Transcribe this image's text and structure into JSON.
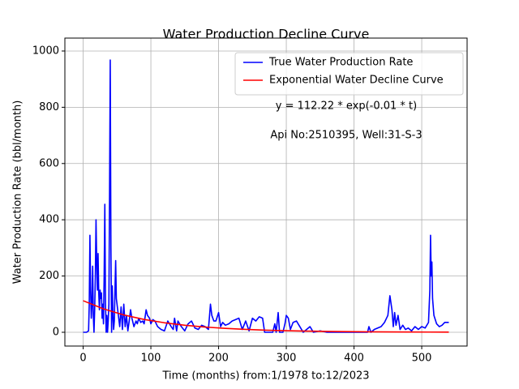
{
  "chart_data": {
    "type": "line",
    "title": "Water Production Decline Curve",
    "x_label": "Time (months) from:1/1978 to:12/2023",
    "y_label": "Water Production Rate (bbl/month)",
    "annotations": [
      "y = 112.22 * exp(-0.01 * t)",
      "Api No:2510395, Well:31-S-3"
    ],
    "xlim": [
      -27,
      567
    ],
    "ylim": [
      -49,
      1046
    ],
    "xticks": [
      0,
      100,
      200,
      300,
      400,
      500
    ],
    "yticks": [
      0,
      200,
      400,
      600,
      800,
      1000
    ],
    "grid": true,
    "legend": "upper right",
    "series": [
      {
        "name": "True Water Production Rate",
        "color": "#0000ff",
        "x": [
          0,
          5,
          8,
          9,
          10,
          11,
          12,
          13,
          14,
          15,
          16,
          17,
          18,
          19,
          20,
          21,
          22,
          23,
          24,
          25,
          26,
          27,
          28,
          29,
          30,
          31,
          32,
          33,
          34,
          35,
          36,
          37,
          38,
          39,
          40,
          41,
          42,
          43,
          44,
          45,
          46,
          47,
          48,
          49,
          50,
          52,
          54,
          56,
          58,
          60,
          62,
          64,
          66,
          68,
          70,
          72,
          75,
          78,
          80,
          82,
          85,
          88,
          90,
          93,
          95,
          98,
          100,
          103,
          106,
          110,
          115,
          120,
          125,
          130,
          133,
          135,
          138,
          140,
          145,
          150,
          155,
          160,
          165,
          170,
          175,
          180,
          185,
          188,
          190,
          193,
          196,
          200,
          203,
          206,
          210,
          215,
          220,
          225,
          230,
          235,
          240,
          245,
          250,
          255,
          260,
          265,
          268,
          275,
          280,
          283,
          285,
          288,
          290,
          295,
          298,
          300,
          303,
          306,
          310,
          315,
          320,
          325,
          330,
          335,
          340,
          350,
          360,
          380,
          400,
          420,
          422,
          425,
          430,
          435,
          440,
          445,
          450,
          453,
          456,
          458,
          460,
          462,
          465,
          468,
          472,
          476,
          480,
          485,
          490,
          495,
          500,
          505,
          510,
          512,
          513,
          514,
          515,
          516,
          518,
          522,
          526,
          530,
          534,
          540
        ],
        "values": [
          0,
          0,
          5,
          100,
          345,
          150,
          50,
          100,
          235,
          60,
          0,
          80,
          200,
          400,
          250,
          150,
          280,
          140,
          80,
          150,
          120,
          140,
          50,
          100,
          30,
          200,
          455,
          100,
          0,
          60,
          0,
          40,
          100,
          500,
          968,
          300,
          0,
          165,
          60,
          10,
          40,
          150,
          255,
          120,
          100,
          60,
          20,
          90,
          10,
          100,
          20,
          60,
          5,
          40,
          80,
          50,
          20,
          40,
          30,
          50,
          35,
          40,
          30,
          80,
          60,
          50,
          30,
          45,
          40,
          20,
          10,
          5,
          40,
          20,
          10,
          50,
          5,
          40,
          20,
          5,
          30,
          40,
          15,
          10,
          25,
          20,
          10,
          100,
          60,
          40,
          40,
          70,
          20,
          35,
          25,
          30,
          40,
          45,
          50,
          10,
          40,
          5,
          50,
          40,
          55,
          50,
          0,
          0,
          0,
          30,
          0,
          70,
          0,
          0,
          30,
          60,
          50,
          10,
          35,
          40,
          20,
          0,
          10,
          20,
          0,
          5,
          0,
          0,
          0,
          0,
          20,
          0,
          10,
          15,
          20,
          35,
          60,
          130,
          80,
          20,
          70,
          25,
          60,
          10,
          25,
          10,
          15,
          5,
          20,
          10,
          20,
          15,
          35,
          150,
          345,
          200,
          250,
          120,
          60,
          30,
          20,
          25,
          35,
          35
        ]
      },
      {
        "name": "Exponential Water Decline Curve",
        "color": "#ff0000",
        "x": [
          0,
          30,
          60,
          90,
          120,
          150,
          180,
          210,
          240,
          270,
          300,
          330,
          360,
          390,
          420,
          450,
          480,
          510,
          540
        ],
        "values": [
          112.2,
          83.1,
          61.6,
          45.6,
          33.8,
          25.0,
          18.6,
          13.8,
          10.2,
          7.5,
          5.6,
          4.1,
          3.1,
          2.3,
          1.7,
          1.2,
          0.9,
          0.7,
          0.5
        ]
      }
    ]
  }
}
